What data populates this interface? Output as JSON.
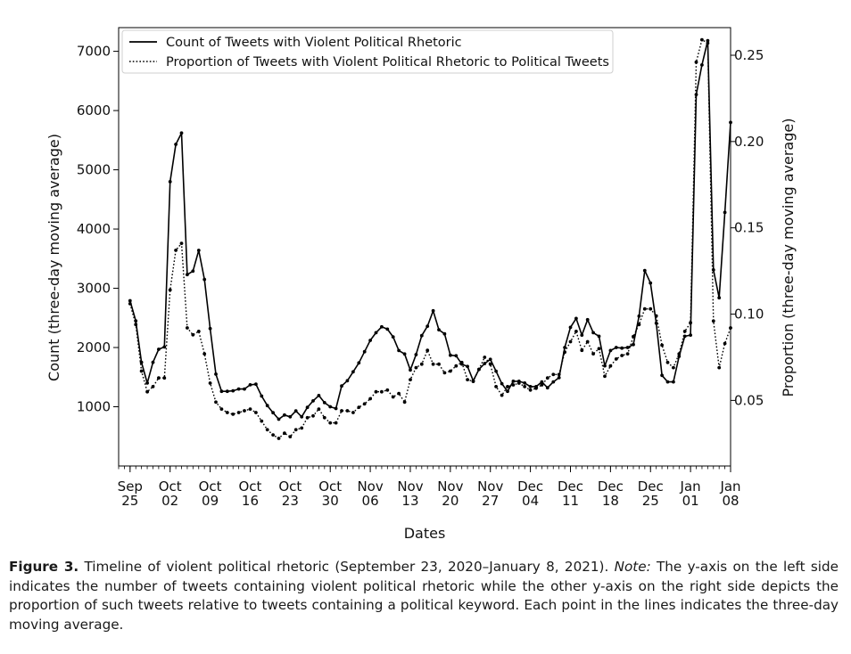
{
  "chart_data": {
    "type": "line",
    "xlabel": "Dates",
    "ylabel_left": "Count (three-day moving average)",
    "ylabel_right": "Proportion (three-day moving average)",
    "xlim": [
      "2020-09-23",
      "2021-01-08"
    ],
    "ylim_left": [
      0,
      7400
    ],
    "ylim_right": [
      0.012,
      0.266
    ],
    "yticks_left": [
      1000,
      2000,
      3000,
      4000,
      5000,
      6000,
      7000
    ],
    "yticks_right": [
      0.05,
      0.1,
      0.15,
      0.2,
      0.25
    ],
    "ytick_labels_right": [
      "0.05",
      "0.10",
      "0.15",
      "0.20",
      "0.25"
    ],
    "xticks": [
      {
        "date": "2020-09-25",
        "top": "Sep",
        "bottom": "25"
      },
      {
        "date": "2020-10-02",
        "top": "Oct",
        "bottom": "02"
      },
      {
        "date": "2020-10-09",
        "top": "Oct",
        "bottom": "09"
      },
      {
        "date": "2020-10-16",
        "top": "Oct",
        "bottom": "16"
      },
      {
        "date": "2020-10-23",
        "top": "Oct",
        "bottom": "23"
      },
      {
        "date": "2020-10-30",
        "top": "Oct",
        "bottom": "30"
      },
      {
        "date": "2020-11-06",
        "top": "Nov",
        "bottom": "06"
      },
      {
        "date": "2020-11-13",
        "top": "Nov",
        "bottom": "13"
      },
      {
        "date": "2020-11-20",
        "top": "Nov",
        "bottom": "20"
      },
      {
        "date": "2020-11-27",
        "top": "Nov",
        "bottom": "27"
      },
      {
        "date": "2020-12-04",
        "top": "Dec",
        "bottom": "04"
      },
      {
        "date": "2020-12-11",
        "top": "Dec",
        "bottom": "11"
      },
      {
        "date": "2020-12-18",
        "top": "Dec",
        "bottom": "18"
      },
      {
        "date": "2020-12-25",
        "top": "Dec",
        "bottom": "25"
      },
      {
        "date": "2021-01-01",
        "top": "Jan",
        "bottom": "01"
      },
      {
        "date": "2021-01-08",
        "top": "Jan",
        "bottom": "08"
      }
    ],
    "grid": false,
    "legend_position": "top",
    "series": [
      {
        "name": "Count of Tweets with Violent Political Rhetoric",
        "axis": "left",
        "style": "solid",
        "color": "#000000",
        "values": [
          [
            "2020-09-25",
            2790
          ],
          [
            "2020-09-26",
            2450
          ],
          [
            "2020-09-27",
            1750
          ],
          [
            "2020-09-28",
            1400
          ],
          [
            "2020-09-29",
            1750
          ],
          [
            "2020-09-30",
            1970
          ],
          [
            "2020-10-01",
            2010
          ],
          [
            "2020-10-02",
            4800
          ],
          [
            "2020-10-03",
            5430
          ],
          [
            "2020-10-04",
            5620
          ],
          [
            "2020-10-05",
            3230
          ],
          [
            "2020-10-06",
            3290
          ],
          [
            "2020-10-07",
            3640
          ],
          [
            "2020-10-08",
            3150
          ],
          [
            "2020-10-09",
            2320
          ],
          [
            "2020-10-10",
            1550
          ],
          [
            "2020-10-11",
            1260
          ],
          [
            "2020-10-12",
            1260
          ],
          [
            "2020-10-13",
            1270
          ],
          [
            "2020-10-14",
            1300
          ],
          [
            "2020-10-15",
            1300
          ],
          [
            "2020-10-16",
            1370
          ],
          [
            "2020-10-17",
            1380
          ],
          [
            "2020-10-18",
            1180
          ],
          [
            "2020-10-19",
            1020
          ],
          [
            "2020-10-20",
            900
          ],
          [
            "2020-10-21",
            790
          ],
          [
            "2020-10-22",
            860
          ],
          [
            "2020-10-23",
            830
          ],
          [
            "2020-10-24",
            930
          ],
          [
            "2020-10-25",
            830
          ],
          [
            "2020-10-26",
            990
          ],
          [
            "2020-10-27",
            1100
          ],
          [
            "2020-10-28",
            1190
          ],
          [
            "2020-10-29",
            1070
          ],
          [
            "2020-10-30",
            1000
          ],
          [
            "2020-10-31",
            970
          ],
          [
            "2020-11-01",
            1350
          ],
          [
            "2020-11-02",
            1440
          ],
          [
            "2020-11-03",
            1590
          ],
          [
            "2020-11-04",
            1740
          ],
          [
            "2020-11-05",
            1930
          ],
          [
            "2020-11-06",
            2120
          ],
          [
            "2020-11-07",
            2250
          ],
          [
            "2020-11-08",
            2350
          ],
          [
            "2020-11-09",
            2310
          ],
          [
            "2020-11-10",
            2180
          ],
          [
            "2020-11-11",
            1950
          ],
          [
            "2020-11-12",
            1890
          ],
          [
            "2020-11-13",
            1620
          ],
          [
            "2020-11-14",
            1880
          ],
          [
            "2020-11-15",
            2200
          ],
          [
            "2020-11-16",
            2360
          ],
          [
            "2020-11-17",
            2620
          ],
          [
            "2020-11-18",
            2300
          ],
          [
            "2020-11-19",
            2230
          ],
          [
            "2020-11-20",
            1870
          ],
          [
            "2020-11-21",
            1860
          ],
          [
            "2020-11-22",
            1720
          ],
          [
            "2020-11-23",
            1680
          ],
          [
            "2020-11-24",
            1440
          ],
          [
            "2020-11-25",
            1630
          ],
          [
            "2020-11-26",
            1730
          ],
          [
            "2020-11-27",
            1800
          ],
          [
            "2020-11-28",
            1600
          ],
          [
            "2020-11-29",
            1390
          ],
          [
            "2020-11-30",
            1260
          ],
          [
            "2020-12-01",
            1430
          ],
          [
            "2020-12-02",
            1430
          ],
          [
            "2020-12-03",
            1400
          ],
          [
            "2020-12-04",
            1340
          ],
          [
            "2020-12-05",
            1340
          ],
          [
            "2020-12-06",
            1420
          ],
          [
            "2020-12-07",
            1320
          ],
          [
            "2020-12-08",
            1420
          ],
          [
            "2020-12-09",
            1490
          ],
          [
            "2020-12-10",
            2000
          ],
          [
            "2020-12-11",
            2340
          ],
          [
            "2020-12-12",
            2490
          ],
          [
            "2020-12-13",
            2210
          ],
          [
            "2020-12-14",
            2470
          ],
          [
            "2020-12-15",
            2250
          ],
          [
            "2020-12-16",
            2190
          ],
          [
            "2020-12-17",
            1690
          ],
          [
            "2020-12-18",
            1950
          ],
          [
            "2020-12-19",
            2000
          ],
          [
            "2020-12-20",
            1990
          ],
          [
            "2020-12-21",
            2000
          ],
          [
            "2020-12-22",
            2050
          ],
          [
            "2020-12-23",
            2530
          ],
          [
            "2020-12-24",
            3300
          ],
          [
            "2020-12-25",
            3090
          ],
          [
            "2020-12-26",
            2410
          ],
          [
            "2020-12-27",
            1530
          ],
          [
            "2020-12-28",
            1420
          ],
          [
            "2020-12-29",
            1420
          ],
          [
            "2020-12-30",
            1850
          ],
          [
            "2020-12-31",
            2190
          ],
          [
            "2021-01-01",
            2210
          ],
          [
            "2021-01-02",
            6270
          ],
          [
            "2021-01-03",
            6770
          ],
          [
            "2021-01-04",
            7180
          ],
          [
            "2021-01-05",
            3310
          ],
          [
            "2021-01-06",
            2840
          ],
          [
            "2021-01-07",
            4280
          ],
          [
            "2021-01-08",
            5800
          ]
        ]
      },
      {
        "name": "Proportion of Tweets with Violent Political Rhetoric to Political Tweets",
        "axis": "right",
        "style": "dotted",
        "color": "#000000",
        "values": [
          [
            "2020-09-25",
            0.106
          ],
          [
            "2020-09-26",
            0.094
          ],
          [
            "2020-09-27",
            0.067
          ],
          [
            "2020-09-28",
            0.055
          ],
          [
            "2020-09-29",
            0.058
          ],
          [
            "2020-09-30",
            0.063
          ],
          [
            "2020-10-01",
            0.063
          ],
          [
            "2020-10-02",
            0.114
          ],
          [
            "2020-10-03",
            0.137
          ],
          [
            "2020-10-04",
            0.141
          ],
          [
            "2020-10-05",
            0.092
          ],
          [
            "2020-10-06",
            0.088
          ],
          [
            "2020-10-07",
            0.09
          ],
          [
            "2020-10-08",
            0.077
          ],
          [
            "2020-10-09",
            0.06
          ],
          [
            "2020-10-10",
            0.049
          ],
          [
            "2020-10-11",
            0.045
          ],
          [
            "2020-10-12",
            0.043
          ],
          [
            "2020-10-13",
            0.042
          ],
          [
            "2020-10-14",
            0.043
          ],
          [
            "2020-10-15",
            0.044
          ],
          [
            "2020-10-16",
            0.045
          ],
          [
            "2020-10-17",
            0.043
          ],
          [
            "2020-10-18",
            0.038
          ],
          [
            "2020-10-19",
            0.033
          ],
          [
            "2020-10-20",
            0.03
          ],
          [
            "2020-10-21",
            0.028
          ],
          [
            "2020-10-22",
            0.031
          ],
          [
            "2020-10-23",
            0.029
          ],
          [
            "2020-10-24",
            0.033
          ],
          [
            "2020-10-25",
            0.034
          ],
          [
            "2020-10-26",
            0.04
          ],
          [
            "2020-10-27",
            0.041
          ],
          [
            "2020-10-28",
            0.045
          ],
          [
            "2020-10-29",
            0.04
          ],
          [
            "2020-10-30",
            0.037
          ],
          [
            "2020-10-31",
            0.037
          ],
          [
            "2020-11-01",
            0.044
          ],
          [
            "2020-11-02",
            0.044
          ],
          [
            "2020-11-03",
            0.043
          ],
          [
            "2020-11-04",
            0.046
          ],
          [
            "2020-11-05",
            0.048
          ],
          [
            "2020-11-06",
            0.051
          ],
          [
            "2020-11-07",
            0.055
          ],
          [
            "2020-11-08",
            0.055
          ],
          [
            "2020-11-09",
            0.056
          ],
          [
            "2020-11-10",
            0.052
          ],
          [
            "2020-11-11",
            0.054
          ],
          [
            "2020-11-12",
            0.049
          ],
          [
            "2020-11-13",
            0.062
          ],
          [
            "2020-11-14",
            0.069
          ],
          [
            "2020-11-15",
            0.071
          ],
          [
            "2020-11-16",
            0.079
          ],
          [
            "2020-11-17",
            0.071
          ],
          [
            "2020-11-18",
            0.071
          ],
          [
            "2020-11-19",
            0.066
          ],
          [
            "2020-11-20",
            0.067
          ],
          [
            "2020-11-21",
            0.07
          ],
          [
            "2020-11-22",
            0.072
          ],
          [
            "2020-11-23",
            0.062
          ],
          [
            "2020-11-24",
            0.061
          ],
          [
            "2020-11-25",
            0.068
          ],
          [
            "2020-11-26",
            0.075
          ],
          [
            "2020-11-27",
            0.071
          ],
          [
            "2020-11-28",
            0.058
          ],
          [
            "2020-11-29",
            0.053
          ],
          [
            "2020-11-30",
            0.058
          ],
          [
            "2020-12-01",
            0.059
          ],
          [
            "2020-12-02",
            0.06
          ],
          [
            "2020-12-03",
            0.058
          ],
          [
            "2020-12-04",
            0.056
          ],
          [
            "2020-12-05",
            0.057
          ],
          [
            "2020-12-06",
            0.059
          ],
          [
            "2020-12-07",
            0.063
          ],
          [
            "2020-12-08",
            0.065
          ],
          [
            "2020-12-09",
            0.065
          ],
          [
            "2020-12-10",
            0.078
          ],
          [
            "2020-12-11",
            0.084
          ],
          [
            "2020-12-12",
            0.09
          ],
          [
            "2020-12-13",
            0.079
          ],
          [
            "2020-12-14",
            0.084
          ],
          [
            "2020-12-15",
            0.077
          ],
          [
            "2020-12-16",
            0.08
          ],
          [
            "2020-12-17",
            0.064
          ],
          [
            "2020-12-18",
            0.07
          ],
          [
            "2020-12-19",
            0.074
          ],
          [
            "2020-12-20",
            0.076
          ],
          [
            "2020-12-21",
            0.077
          ],
          [
            "2020-12-22",
            0.087
          ],
          [
            "2020-12-23",
            0.094
          ],
          [
            "2020-12-24",
            0.103
          ],
          [
            "2020-12-25",
            0.103
          ],
          [
            "2020-12-26",
            0.099
          ],
          [
            "2020-12-27",
            0.082
          ],
          [
            "2020-12-28",
            0.072
          ],
          [
            "2020-12-29",
            0.069
          ],
          [
            "2020-12-30",
            0.077
          ],
          [
            "2020-12-31",
            0.09
          ],
          [
            "2021-01-01",
            0.095
          ],
          [
            "2021-01-02",
            0.246
          ],
          [
            "2021-01-03",
            0.259
          ],
          [
            "2021-01-04",
            0.257
          ],
          [
            "2021-01-05",
            0.096
          ],
          [
            "2021-01-06",
            0.069
          ],
          [
            "2021-01-07",
            0.083
          ],
          [
            "2021-01-08",
            0.092
          ]
        ]
      }
    ]
  },
  "caption": {
    "figure_label": "Figure 3.",
    "text_a": "Timeline of violent political rhetoric (September 23, 2020–January 8, 2021).",
    "note_label": "Note:",
    "text_b": "The y-axis on the left side indicates the number of tweets containing violent political rhetoric while the other y-axis on the right side depicts the proportion of such tweets relative to tweets containing a political keyword. Each point in the lines indicates the three-day moving average."
  }
}
